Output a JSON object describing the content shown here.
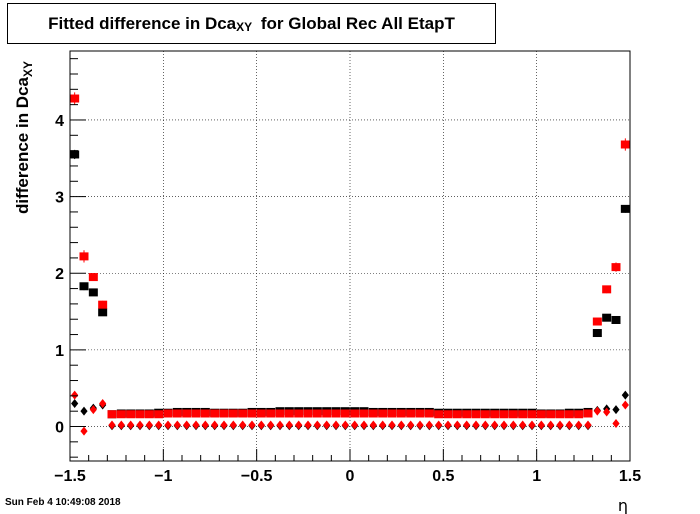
{
  "title": {
    "main": "Fitted difference in Dca",
    "sub": "XY",
    "suffix": "for Global Rec All EtapT"
  },
  "timestamp": "Sun Feb  4 10:49:08 2018",
  "colors": {
    "series1": "#000000",
    "series2": "#ff0000",
    "grid": "#000000",
    "frame": "#000000"
  },
  "chart_data": {
    "type": "scatter",
    "xlabel": "η",
    "ylabel_main": "difference in Dca",
    "ylabel_sub": "XY",
    "xlim": [
      -1.5,
      1.5
    ],
    "ylim": [
      -0.45,
      4.9
    ],
    "x_ticks": [
      -1.5,
      -1,
      -0.5,
      0,
      0.5,
      1,
      1.5
    ],
    "x_tick_labels": [
      "−1.5",
      "−1",
      "−0.5",
      "0",
      "0.5",
      "1",
      "1.5"
    ],
    "y_ticks": [
      0,
      1,
      2,
      3,
      4
    ],
    "y_tick_labels": [
      "0",
      "1",
      "2",
      "3",
      "4"
    ],
    "grid": true,
    "series": [
      {
        "marker": "square",
        "color": "#000000",
        "x": [
          -1.475,
          -1.425,
          -1.375,
          -1.325,
          -1.275,
          -1.225,
          -1.175,
          -1.125,
          -1.075,
          -1.025,
          -0.975,
          -0.925,
          -0.875,
          -0.825,
          -0.775,
          -0.725,
          -0.675,
          -0.625,
          -0.575,
          -0.525,
          -0.475,
          -0.425,
          -0.375,
          -0.325,
          -0.275,
          -0.225,
          -0.175,
          -0.125,
          -0.075,
          -0.025,
          0.025,
          0.075,
          0.125,
          0.175,
          0.225,
          0.275,
          0.325,
          0.375,
          0.425,
          0.475,
          0.525,
          0.575,
          0.625,
          0.675,
          0.725,
          0.775,
          0.825,
          0.875,
          0.925,
          0.975,
          1.025,
          1.075,
          1.125,
          1.175,
          1.225,
          1.275,
          1.325,
          1.375,
          1.425,
          1.475
        ],
        "y": [
          3.55,
          1.83,
          1.75,
          1.49,
          0.16,
          0.17,
          0.17,
          0.17,
          0.17,
          0.18,
          0.18,
          0.19,
          0.19,
          0.19,
          0.19,
          0.18,
          0.18,
          0.18,
          0.18,
          0.19,
          0.19,
          0.19,
          0.2,
          0.2,
          0.2,
          0.2,
          0.2,
          0.2,
          0.2,
          0.2,
          0.2,
          0.2,
          0.19,
          0.19,
          0.19,
          0.19,
          0.19,
          0.19,
          0.19,
          0.18,
          0.18,
          0.18,
          0.18,
          0.18,
          0.18,
          0.18,
          0.18,
          0.18,
          0.18,
          0.18,
          0.17,
          0.17,
          0.17,
          0.18,
          0.18,
          0.19,
          1.22,
          1.42,
          1.39,
          2.84
        ],
        "yerr": [
          0.06,
          0.05,
          0.04,
          0.04,
          0.01,
          0.01,
          0.01,
          0.01,
          0.01,
          0.01,
          0.01,
          0.01,
          0.01,
          0.01,
          0.01,
          0.01,
          0.01,
          0.01,
          0.01,
          0.01,
          0.01,
          0.01,
          0.01,
          0.01,
          0.01,
          0.01,
          0.01,
          0.01,
          0.01,
          0.01,
          0.01,
          0.01,
          0.01,
          0.01,
          0.01,
          0.01,
          0.01,
          0.01,
          0.01,
          0.01,
          0.01,
          0.01,
          0.01,
          0.01,
          0.01,
          0.01,
          0.01,
          0.01,
          0.01,
          0.01,
          0.01,
          0.01,
          0.01,
          0.01,
          0.01,
          0.01,
          0.04,
          0.03,
          0.03,
          0.05
        ]
      },
      {
        "marker": "square",
        "color": "#ff0000",
        "x": [
          -1.475,
          -1.425,
          -1.375,
          -1.325,
          -1.275,
          -1.225,
          -1.175,
          -1.125,
          -1.075,
          -1.025,
          -0.975,
          -0.925,
          -0.875,
          -0.825,
          -0.775,
          -0.725,
          -0.675,
          -0.625,
          -0.575,
          -0.525,
          -0.475,
          -0.425,
          -0.375,
          -0.325,
          -0.275,
          -0.225,
          -0.175,
          -0.125,
          -0.075,
          -0.025,
          0.025,
          0.075,
          0.125,
          0.175,
          0.225,
          0.275,
          0.325,
          0.375,
          0.425,
          0.475,
          0.525,
          0.575,
          0.625,
          0.675,
          0.725,
          0.775,
          0.825,
          0.875,
          0.925,
          0.975,
          1.025,
          1.075,
          1.125,
          1.175,
          1.225,
          1.275,
          1.325,
          1.375,
          1.425,
          1.475
        ],
        "y": [
          4.28,
          2.22,
          1.95,
          1.59,
          0.16,
          0.16,
          0.16,
          0.16,
          0.16,
          0.16,
          0.17,
          0.17,
          0.17,
          0.17,
          0.17,
          0.17,
          0.17,
          0.17,
          0.17,
          0.17,
          0.17,
          0.17,
          0.17,
          0.17,
          0.17,
          0.17,
          0.17,
          0.17,
          0.17,
          0.17,
          0.17,
          0.17,
          0.17,
          0.17,
          0.17,
          0.17,
          0.17,
          0.17,
          0.17,
          0.16,
          0.16,
          0.16,
          0.16,
          0.16,
          0.16,
          0.16,
          0.16,
          0.16,
          0.16,
          0.16,
          0.16,
          0.16,
          0.16,
          0.16,
          0.16,
          0.17,
          1.37,
          1.79,
          2.08,
          3.68
        ],
        "yerr": [
          0.08,
          0.08,
          0.05,
          0.05,
          0.01,
          0.01,
          0.01,
          0.01,
          0.01,
          0.01,
          0.01,
          0.01,
          0.01,
          0.01,
          0.01,
          0.01,
          0.01,
          0.01,
          0.01,
          0.01,
          0.01,
          0.01,
          0.01,
          0.01,
          0.01,
          0.01,
          0.01,
          0.01,
          0.01,
          0.01,
          0.01,
          0.01,
          0.01,
          0.01,
          0.01,
          0.01,
          0.01,
          0.01,
          0.01,
          0.01,
          0.01,
          0.01,
          0.01,
          0.01,
          0.01,
          0.01,
          0.01,
          0.01,
          0.01,
          0.01,
          0.01,
          0.01,
          0.01,
          0.01,
          0.01,
          0.01,
          0.04,
          0.05,
          0.06,
          0.08
        ]
      },
      {
        "marker": "diamond",
        "color": "#000000",
        "x": [
          -1.475,
          -1.425,
          -1.375,
          -1.325,
          -1.275,
          -1.225,
          -1.175,
          -1.125,
          -1.075,
          -1.025,
          -0.975,
          -0.925,
          -0.875,
          -0.825,
          -0.775,
          -0.725,
          -0.675,
          -0.625,
          -0.575,
          -0.525,
          -0.475,
          -0.425,
          -0.375,
          -0.325,
          -0.275,
          -0.225,
          -0.175,
          -0.125,
          -0.075,
          -0.025,
          0.025,
          0.075,
          0.125,
          0.175,
          0.225,
          0.275,
          0.325,
          0.375,
          0.425,
          0.475,
          0.525,
          0.575,
          0.625,
          0.675,
          0.725,
          0.775,
          0.825,
          0.875,
          0.925,
          0.975,
          1.025,
          1.075,
          1.125,
          1.175,
          1.225,
          1.275,
          1.325,
          1.375,
          1.425,
          1.475
        ],
        "y": [
          0.3,
          0.2,
          0.24,
          0.28,
          0.01,
          0.01,
          0.01,
          0.01,
          0.01,
          0.01,
          0.01,
          0.01,
          0.01,
          0.01,
          0.01,
          0.01,
          0.01,
          0.01,
          0.01,
          0.01,
          0.01,
          0.01,
          0.01,
          0.01,
          0.01,
          0.01,
          0.01,
          0.01,
          0.01,
          0.01,
          0.01,
          0.01,
          0.01,
          0.01,
          0.01,
          0.01,
          0.01,
          0.01,
          0.01,
          0.01,
          0.01,
          0.01,
          0.01,
          0.01,
          0.01,
          0.01,
          0.01,
          0.01,
          0.01,
          0.01,
          0.01,
          0.01,
          0.01,
          0.01,
          0.01,
          0.01,
          0.21,
          0.23,
          0.22,
          0.41
        ]
      },
      {
        "marker": "diamond",
        "color": "#ff0000",
        "x": [
          -1.475,
          -1.425,
          -1.375,
          -1.325,
          -1.275,
          -1.225,
          -1.175,
          -1.125,
          -1.075,
          -1.025,
          -0.975,
          -0.925,
          -0.875,
          -0.825,
          -0.775,
          -0.725,
          -0.675,
          -0.625,
          -0.575,
          -0.525,
          -0.475,
          -0.425,
          -0.375,
          -0.325,
          -0.275,
          -0.225,
          -0.175,
          -0.125,
          -0.075,
          -0.025,
          0.025,
          0.075,
          0.125,
          0.175,
          0.225,
          0.275,
          0.325,
          0.375,
          0.425,
          0.475,
          0.525,
          0.575,
          0.625,
          0.675,
          0.725,
          0.775,
          0.825,
          0.875,
          0.925,
          0.975,
          1.025,
          1.075,
          1.125,
          1.175,
          1.225,
          1.275,
          1.325,
          1.375,
          1.425,
          1.475
        ],
        "y": [
          0.41,
          -0.06,
          0.22,
          0.3,
          0.02,
          0.02,
          0.02,
          0.02,
          0.02,
          0.02,
          0.02,
          0.02,
          0.02,
          0.02,
          0.02,
          0.02,
          0.02,
          0.02,
          0.02,
          0.02,
          0.02,
          0.02,
          0.02,
          0.02,
          0.02,
          0.02,
          0.02,
          0.02,
          0.02,
          0.02,
          0.02,
          0.02,
          0.02,
          0.02,
          0.02,
          0.02,
          0.02,
          0.02,
          0.02,
          0.02,
          0.02,
          0.02,
          0.02,
          0.02,
          0.02,
          0.02,
          0.02,
          0.02,
          0.02,
          0.02,
          0.02,
          0.02,
          0.02,
          0.02,
          0.02,
          0.02,
          0.2,
          0.19,
          0.04,
          0.28
        ]
      }
    ]
  }
}
